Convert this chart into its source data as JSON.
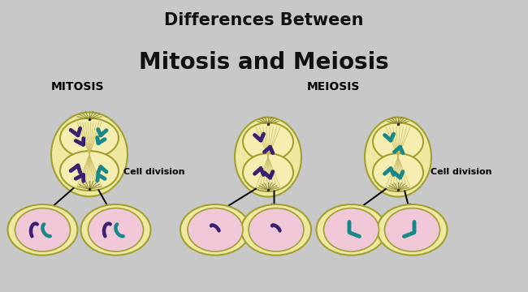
{
  "title_line1": "Differences Between",
  "title_line2": "Mitosis and Meiosis",
  "title_bg": "#FFFF00",
  "title_color": "#111111",
  "bg_color": "#C8C8C8",
  "cell_bg": "#F5EEB0",
  "daughter_outer": "#EEE8A0",
  "daughter_inner": "#F0C8D8",
  "label_mitosis": "MITOSIS",
  "label_meiosis": "MEIOSIS",
  "cell_division_text": "Cell division",
  "purple": "#3A2070",
  "teal": "#1A8888",
  "spindle_color": "#C8B860",
  "cell_border": "#A0A030"
}
